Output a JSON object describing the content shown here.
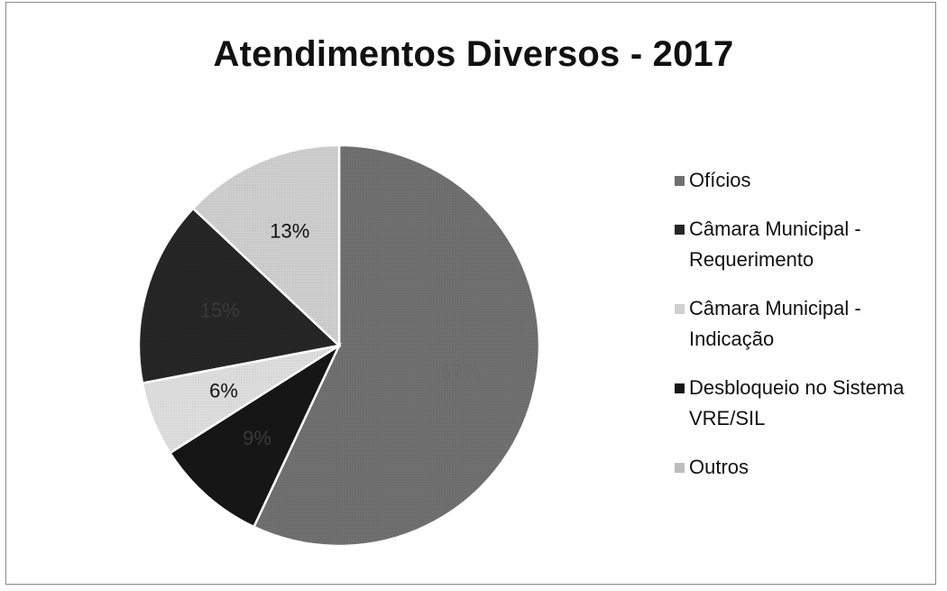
{
  "chart_data": {
    "type": "pie",
    "title": "Atendimentos Diversos - 2017",
    "slices": [
      {
        "name": "Ofícios",
        "value": 57,
        "label": "57%",
        "color": "#707070",
        "label_color": "#6a6a6a"
      },
      {
        "name": "Desbloqueio no Sistema VRE/SIL",
        "value": 9,
        "label": "9%",
        "color": "#161616",
        "label_color": "#3a3a3a"
      },
      {
        "name": "Outros",
        "value": 6,
        "label": "6%",
        "color": "#dedede",
        "label_color": "#111111"
      },
      {
        "name": "Câmara Municipal - Requerimento",
        "value": 15,
        "label": "15%",
        "color": "#262626",
        "label_color": "#3a3a3a"
      },
      {
        "name": "Câmara Municipal - Indicação",
        "value": 13,
        "label": "13%",
        "color": "#cfcfcf",
        "label_color": "#111111"
      }
    ],
    "legend": {
      "position": "right",
      "items": [
        {
          "label": "Ofícios",
          "color": "#707070"
        },
        {
          "label": "Câmara Municipal - Requerimento",
          "color": "#262626"
        },
        {
          "label": "Câmara Municipal - Indicação",
          "color": "#cfcfcf"
        },
        {
          "label": "Desbloqueio no Sistema VRE/SIL",
          "color": "#161616"
        },
        {
          "label": "Outros",
          "color": "#bdbdbd"
        }
      ]
    }
  }
}
